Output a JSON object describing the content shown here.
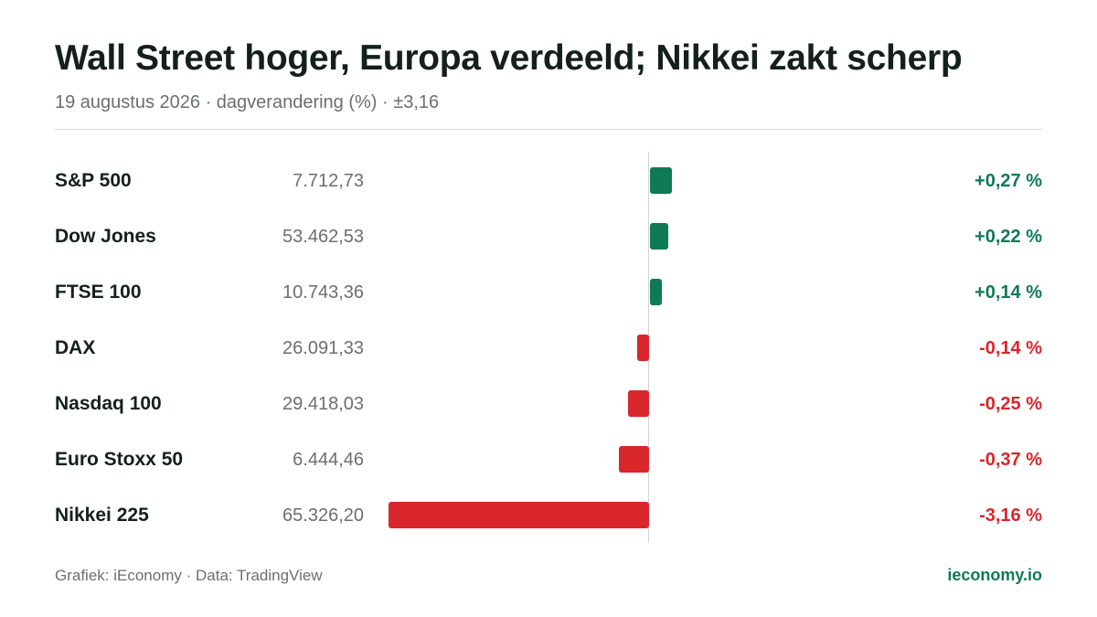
{
  "header": {
    "title": "Wall Street hoger, Europa verdeeld; Nikkei zakt scherp",
    "subtitle": "19 augustus 2026 · dagverandering (%) · ±3,16"
  },
  "footer": {
    "source": "Grafiek: iEconomy · Data: TradingView",
    "brand": "ieconomy.io"
  },
  "colors": {
    "positive": "#0f7a55",
    "negative": "#d9262b"
  },
  "chart_data": {
    "type": "bar",
    "orientation": "horizontal",
    "categories": [
      "S&P 500",
      "Dow Jones",
      "FTSE 100",
      "DAX",
      "Nasdaq 100",
      "Euro Stoxx 50",
      "Nikkei 225"
    ],
    "levels": [
      "7.712,73",
      "53.462,53",
      "10.743,36",
      "26.091,33",
      "29.418,03",
      "6.444,46",
      "65.326,20"
    ],
    "values": [
      0.27,
      0.22,
      0.14,
      -0.14,
      -0.25,
      -0.37,
      -3.16
    ],
    "value_labels": [
      "+0,27 %",
      "+0,22 %",
      "+0,14 %",
      "-0,14 %",
      "-0,25 %",
      "-0,37 %",
      "-3,16 %"
    ],
    "xlim": [
      -3.16,
      3.16
    ],
    "grid": false,
    "legend": "none"
  }
}
